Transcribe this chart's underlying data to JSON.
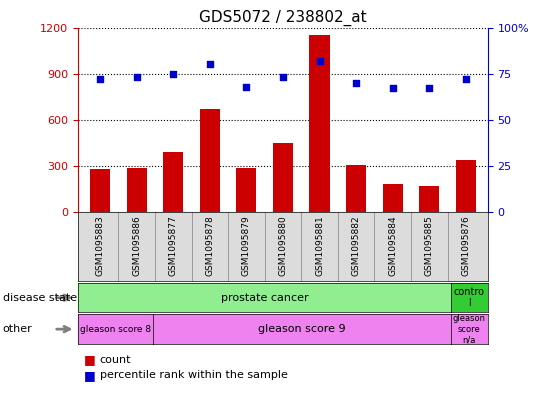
{
  "title": "GDS5072 / 238802_at",
  "samples": [
    "GSM1095883",
    "GSM1095886",
    "GSM1095877",
    "GSM1095878",
    "GSM1095879",
    "GSM1095880",
    "GSM1095881",
    "GSM1095882",
    "GSM1095884",
    "GSM1095885",
    "GSM1095876"
  ],
  "counts": [
    280,
    285,
    390,
    670,
    290,
    450,
    1150,
    305,
    185,
    170,
    340
  ],
  "percentiles": [
    72,
    73,
    75,
    80,
    68,
    73,
    82,
    70,
    67,
    67,
    72
  ],
  "ylim_left": [
    0,
    1200
  ],
  "ylim_right": [
    0,
    100
  ],
  "yticks_left": [
    0,
    300,
    600,
    900,
    1200
  ],
  "yticks_right": [
    0,
    25,
    50,
    75,
    100
  ],
  "bar_color": "#CC0000",
  "dot_color": "#0000CC",
  "disease_state_cancer_color": "#90EE90",
  "disease_state_control_color": "#33CC33",
  "gleason_color": "#EE82EE",
  "bg_color": "#DCDCDC",
  "legend_count_color": "#CC0000",
  "legend_dot_color": "#0000CC"
}
